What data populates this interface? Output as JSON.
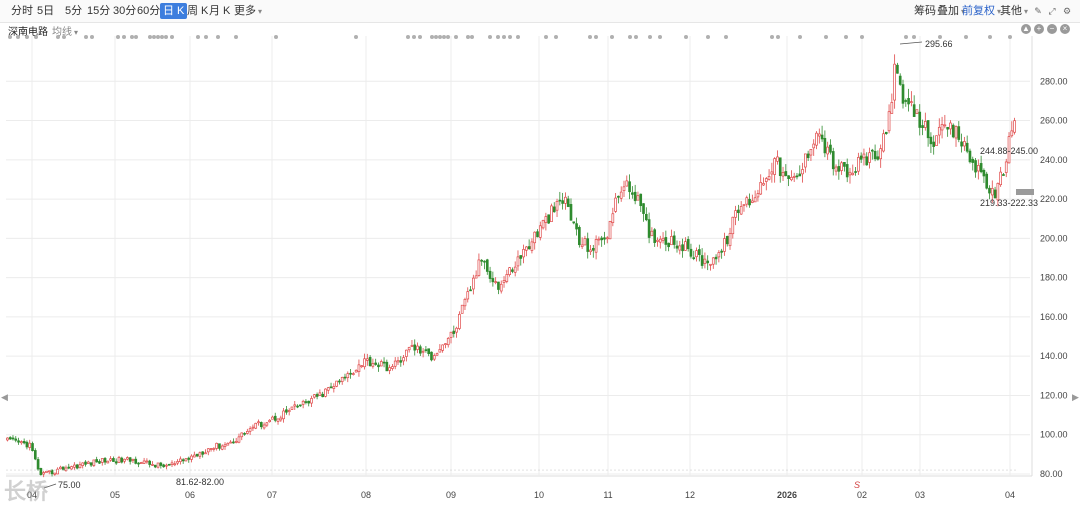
{
  "toolbar": {
    "periods": [
      "分时",
      "5日",
      "5分",
      "15分",
      "30分",
      "60分",
      "日 K",
      "周 K",
      "月 K",
      "更多"
    ],
    "active_period": "日 K",
    "right_items": [
      "筹码",
      "叠加",
      "前复权",
      "其他"
    ]
  },
  "stock": {
    "name": "深南电路",
    "indicator": "均线"
  },
  "watermark": "长桥",
  "marker_s": "S",
  "colors": {
    "up": "#e04848",
    "down": "#2e8b2e",
    "grid": "#ececec",
    "highlight": "#2a62c9",
    "dots": "#b0b0b0"
  },
  "chart_data": {
    "type": "candlestick",
    "title": "",
    "xlabel": "",
    "ylabel": "",
    "ylim": [
      80,
      300
    ],
    "yticks": [
      "80.00",
      "100.00",
      "120.00",
      "140.00",
      "160.00",
      "180.00",
      "200.00",
      "220.00",
      "240.00",
      "260.00",
      "280.00"
    ],
    "xticks": [
      "04",
      "05",
      "06",
      "07",
      "08",
      "09",
      "10",
      "11",
      "12",
      "2026",
      "02",
      "03",
      "04"
    ],
    "annotations": [
      {
        "text": "295.66",
        "label": "period high"
      },
      {
        "text": "75.00",
        "label": "period low"
      },
      {
        "text": "81.62-82.00",
        "label": "gap"
      },
      {
        "text": "244.88-245.00",
        "label": "gap"
      },
      {
        "text": "219.33-222.33",
        "label": "gap"
      }
    ],
    "waypoints": [
      [
        0,
        97
      ],
      [
        8,
        95
      ],
      [
        12,
        79
      ],
      [
        20,
        83
      ],
      [
        35,
        87
      ],
      [
        45,
        87
      ],
      [
        55,
        84
      ],
      [
        60,
        85
      ],
      [
        65,
        88
      ],
      [
        72,
        93
      ],
      [
        80,
        96
      ],
      [
        88,
        104
      ],
      [
        95,
        108
      ],
      [
        105,
        115
      ],
      [
        112,
        120
      ],
      [
        120,
        128
      ],
      [
        128,
        138
      ],
      [
        138,
        134
      ],
      [
        145,
        145
      ],
      [
        152,
        140
      ],
      [
        160,
        152
      ],
      [
        170,
        190
      ],
      [
        176,
        175
      ],
      [
        186,
        195
      ],
      [
        195,
        213
      ],
      [
        200,
        220
      ],
      [
        205,
        198
      ],
      [
        210,
        195
      ],
      [
        215,
        203
      ],
      [
        220,
        227
      ],
      [
        225,
        223
      ],
      [
        230,
        202
      ],
      [
        240,
        198
      ],
      [
        250,
        188
      ],
      [
        256,
        193
      ],
      [
        262,
        215
      ],
      [
        268,
        222
      ],
      [
        275,
        240
      ],
      [
        280,
        228
      ],
      [
        284,
        232
      ],
      [
        290,
        256
      ],
      [
        296,
        238
      ],
      [
        302,
        232
      ],
      [
        307,
        241
      ],
      [
        312,
        240
      ],
      [
        316,
        263
      ],
      [
        318,
        285
      ],
      [
        321,
        270
      ],
      [
        326,
        262
      ],
      [
        332,
        250
      ],
      [
        337,
        256
      ],
      [
        341,
        252
      ],
      [
        346,
        238
      ],
      [
        350,
        232
      ],
      [
        354,
        219
      ],
      [
        358,
        242
      ],
      [
        361,
        262
      ]
    ],
    "count": 362
  }
}
